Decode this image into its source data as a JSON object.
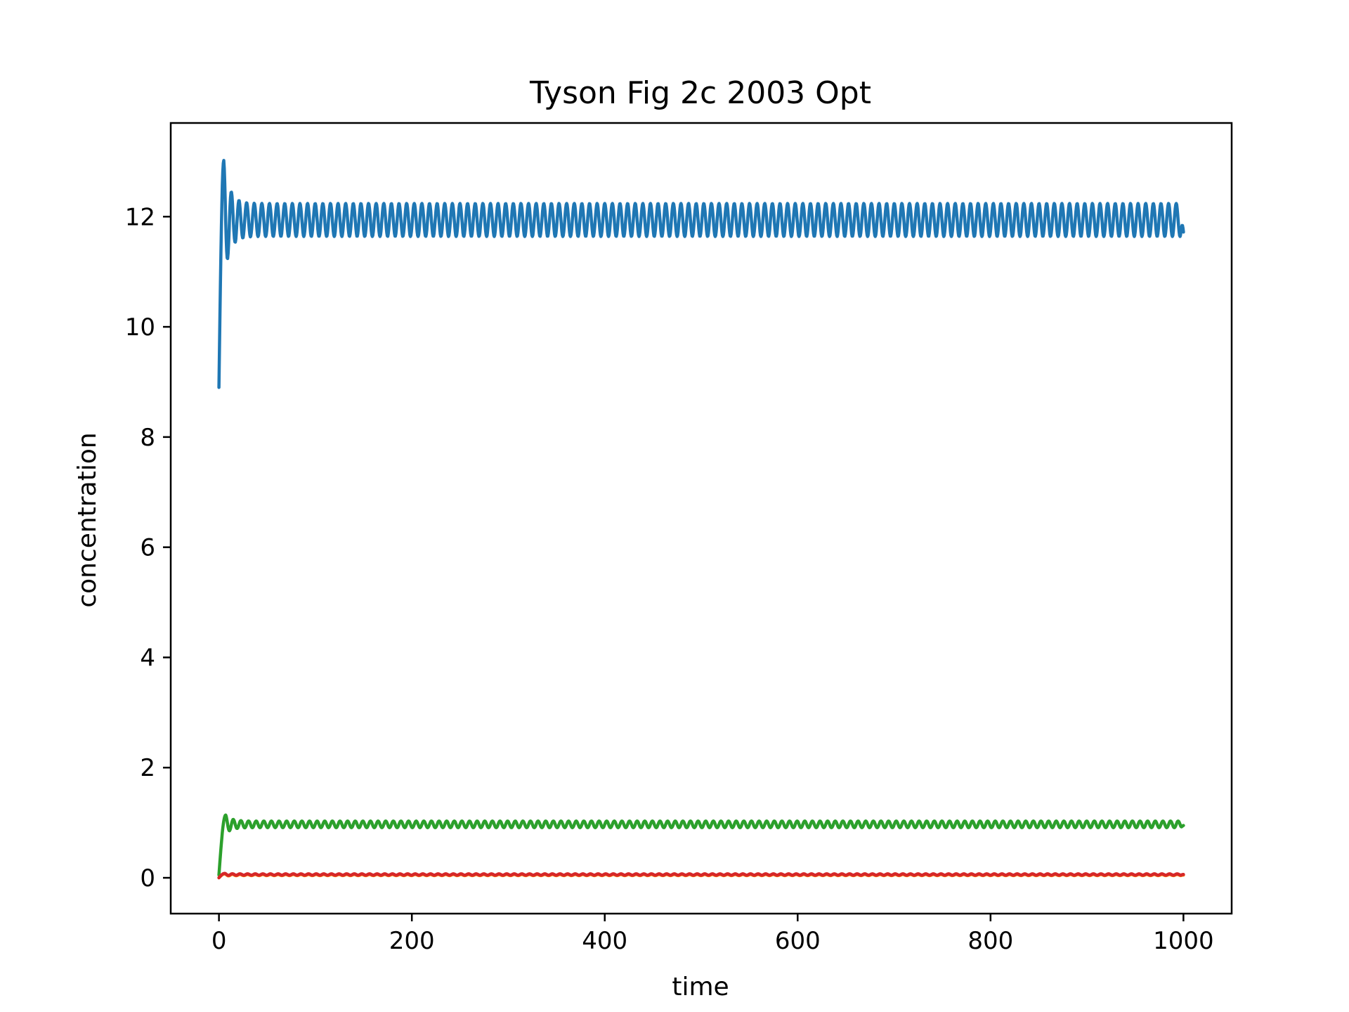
{
  "chart_data": {
    "type": "line",
    "title": "Tyson Fig 2c 2003 Opt",
    "xlabel": "time",
    "ylabel": "concentration",
    "xlim": [
      -50,
      1050
    ],
    "ylim": [
      -0.65,
      13.7
    ],
    "xticks": [
      0,
      200,
      400,
      600,
      800,
      1000
    ],
    "yticks": [
      0,
      2,
      4,
      6,
      8,
      10,
      12
    ],
    "grid": false,
    "legend": "none",
    "series": [
      {
        "color": "#1f77b4",
        "start": 8.9,
        "peak": 13.02,
        "peak_time": 5,
        "mean": 11.94,
        "amplitude": 0.3,
        "period": 7.9,
        "end": 11.72,
        "x_range": [
          0,
          1000
        ]
      },
      {
        "color": "#2ca02c",
        "start": 0.05,
        "peak": 1.14,
        "peak_time": 7,
        "mean": 0.97,
        "amplitude": 0.06,
        "period": 7.9,
        "end": 0.95,
        "x_range": [
          0,
          1000
        ]
      },
      {
        "color": "#ff7f0e",
        "start": 0.0,
        "peak": 0.07,
        "peak_time": 6,
        "mean": 0.05,
        "amplitude": 0.01,
        "period": 7.9,
        "end": 0.05,
        "x_range": [
          0,
          1000
        ]
      },
      {
        "color": "#d62728",
        "start": 0.0,
        "peak": 0.08,
        "peak_time": 6,
        "mean": 0.06,
        "amplitude": 0.012,
        "period": 7.9,
        "end": 0.06,
        "x_range": [
          0,
          1000
        ]
      }
    ]
  }
}
